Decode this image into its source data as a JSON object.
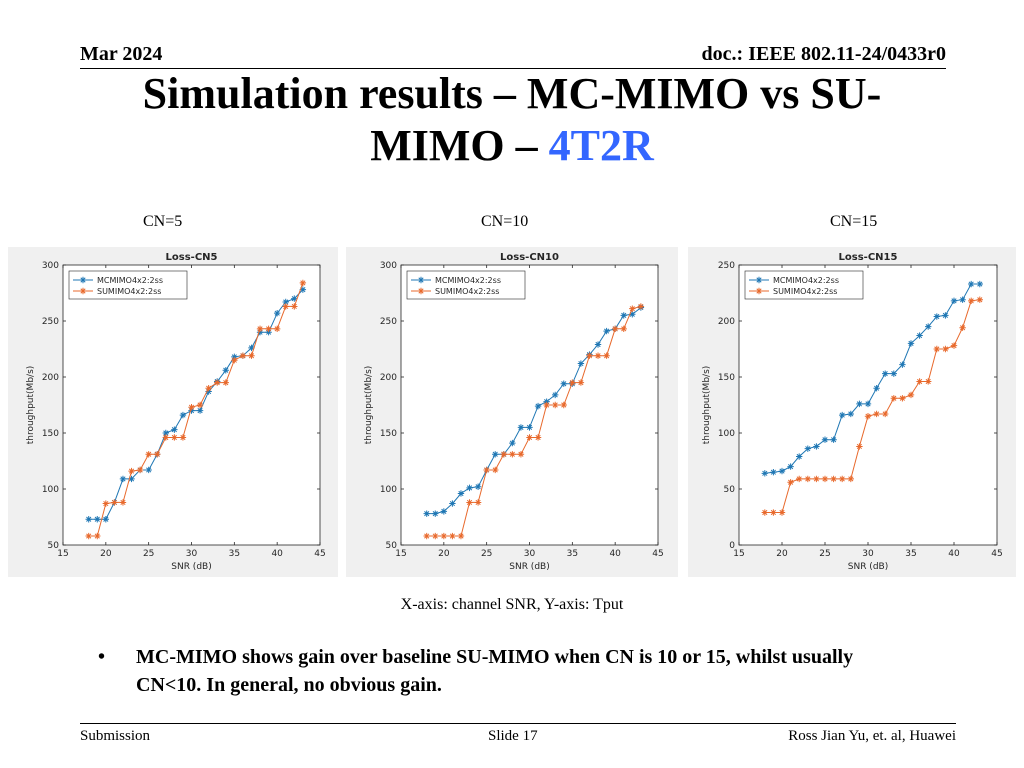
{
  "header": {
    "date": "Mar 2024",
    "doc_id": "doc.: IEEE 802.11-24/0433r0"
  },
  "title": {
    "line1": "Simulation results – MC-MIMO vs SU-",
    "line2_prefix": "MIMO – ",
    "line2_accent": "4T2R",
    "accent_color": "#3366ff"
  },
  "chart_labels": [
    "CN=5",
    "CN=10",
    "CN=15"
  ],
  "caption": "X-axis: channel SNR, Y-axis: Tput",
  "bullet": "MC-MIMO shows gain over baseline SU-MIMO when CN is 10 or 15, whilst usually CN<10. In general, no obvious gain.",
  "footer": {
    "left": "Submission",
    "center": "Slide 17",
    "right": "Ross Jian Yu, et. al, Huawei"
  },
  "chart_data": [
    {
      "type": "line",
      "title": "Loss-CN5",
      "xlabel": "SNR (dB)",
      "ylabel": "throughput(Mb/s)",
      "xlim": [
        15,
        45
      ],
      "ylim": [
        50,
        300
      ],
      "xticks": [
        15,
        20,
        25,
        30,
        35,
        40,
        45
      ],
      "yticks": [
        50,
        100,
        150,
        200,
        250,
        300
      ],
      "legend_position": "top-left",
      "x": [
        18,
        19,
        20,
        21,
        22,
        23,
        24,
        25,
        26,
        27,
        28,
        29,
        30,
        31,
        32,
        33,
        34,
        35,
        36,
        37,
        38,
        39,
        40,
        41,
        42,
        43
      ],
      "series": [
        {
          "name": "MCMIMO4x2:2ss",
          "color": "#1f77b4",
          "values": [
            73,
            73,
            73,
            88,
            109,
            109,
            117,
            117,
            131,
            150,
            153,
            166,
            170,
            170,
            187,
            196,
            206,
            218,
            219,
            226,
            240,
            240,
            257,
            267,
            270,
            278
          ]
        },
        {
          "name": "SUMIMO4x2:2ss",
          "color": "#e8692c",
          "values": [
            58,
            58,
            87,
            88,
            88,
            116,
            117,
            131,
            131,
            146,
            146,
            146,
            173,
            175,
            190,
            195,
            195,
            215,
            219,
            219,
            243,
            243,
            243,
            263,
            263,
            284
          ]
        }
      ]
    },
    {
      "type": "line",
      "title": "Loss-CN10",
      "xlabel": "SNR (dB)",
      "ylabel": "throughput(Mb/s)",
      "xlim": [
        15,
        45
      ],
      "ylim": [
        50,
        300
      ],
      "xticks": [
        15,
        20,
        25,
        30,
        35,
        40,
        45
      ],
      "yticks": [
        50,
        100,
        150,
        200,
        250,
        300
      ],
      "legend_position": "top-left",
      "x": [
        18,
        19,
        20,
        21,
        22,
        23,
        24,
        25,
        26,
        27,
        28,
        29,
        30,
        31,
        32,
        33,
        34,
        35,
        36,
        37,
        38,
        39,
        40,
        41,
        42,
        43
      ],
      "series": [
        {
          "name": "MCMIMO4x2:2ss",
          "color": "#1f77b4",
          "values": [
            78,
            78,
            80,
            87,
            96,
            101,
            102,
            117,
            131,
            131,
            141,
            155,
            155,
            174,
            178,
            184,
            194,
            194,
            212,
            220,
            229,
            241,
            243,
            255,
            256,
            262
          ]
        },
        {
          "name": "SUMIMO4x2:2ss",
          "color": "#e8692c",
          "values": [
            58,
            58,
            58,
            58,
            58,
            88,
            88,
            117,
            117,
            131,
            131,
            131,
            146,
            146,
            175,
            175,
            175,
            195,
            195,
            219,
            219,
            219,
            243,
            243,
            261,
            263
          ]
        }
      ]
    },
    {
      "type": "line",
      "title": "Loss-CN15",
      "xlabel": "SNR (dB)",
      "ylabel": "throughput(Mb/s)",
      "xlim": [
        15,
        45
      ],
      "ylim": [
        0,
        250
      ],
      "xticks": [
        15,
        20,
        25,
        30,
        35,
        40,
        45
      ],
      "yticks": [
        0,
        50,
        100,
        150,
        200,
        250
      ],
      "legend_position": "top-left",
      "x": [
        18,
        19,
        20,
        21,
        22,
        23,
        24,
        25,
        26,
        27,
        28,
        29,
        30,
        31,
        32,
        33,
        34,
        35,
        36,
        37,
        38,
        39,
        40,
        41,
        42,
        43
      ],
      "series": [
        {
          "name": "MCMIMO4x2:2ss",
          "color": "#1f77b4",
          "values": [
            64,
            65,
            66,
            70,
            79,
            86,
            88,
            94,
            94,
            116,
            117,
            126,
            126,
            140,
            153,
            153,
            161,
            180,
            187,
            195,
            204,
            205,
            218,
            219,
            233,
            233
          ]
        },
        {
          "name": "SUMIMO4x2:2ss",
          "color": "#e8692c",
          "values": [
            29,
            29,
            29,
            56,
            59,
            59,
            59,
            59,
            59,
            59,
            59,
            88,
            115,
            117,
            117,
            131,
            131,
            134,
            146,
            146,
            175,
            175,
            178,
            194,
            218,
            219
          ]
        }
      ]
    }
  ]
}
